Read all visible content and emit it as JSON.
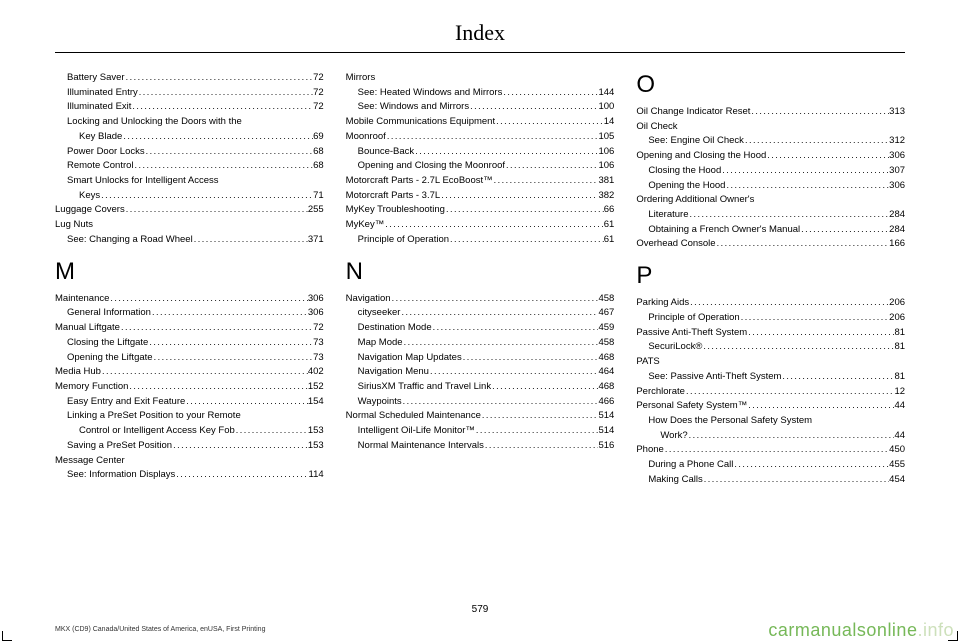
{
  "title": "Index",
  "page_number": "579",
  "footer": "MKX (CD9) Canada/United States of America, enUSA, First Printing",
  "watermark_main": "carmanualsonline",
  "watermark_suffix": ".info",
  "columns": [
    {
      "items": [
        {
          "type": "sub",
          "label": "Battery Saver",
          "page": "72"
        },
        {
          "type": "sub",
          "label": "Illuminated Entry",
          "page": "72"
        },
        {
          "type": "sub",
          "label": "Illuminated Exit",
          "page": "72"
        },
        {
          "type": "subnoline",
          "label": "Locking and Unlocking the Doors with the"
        },
        {
          "type": "subwrap",
          "label": "Key Blade",
          "page": "69"
        },
        {
          "type": "sub",
          "label": "Power Door Locks",
          "page": "68"
        },
        {
          "type": "sub",
          "label": "Remote Control",
          "page": "68"
        },
        {
          "type": "subnoline",
          "label": "Smart Unlocks for Intelligent Access"
        },
        {
          "type": "subwrap",
          "label": "Keys",
          "page": "71"
        },
        {
          "type": "main",
          "label": "Luggage Covers",
          "page": "255"
        },
        {
          "type": "mainnoline",
          "label": "Lug Nuts"
        },
        {
          "type": "sub",
          "label": "See: Changing a Road Wheel",
          "page": "371"
        },
        {
          "type": "letter",
          "label": "M"
        },
        {
          "type": "main",
          "label": "Maintenance",
          "page": "306"
        },
        {
          "type": "sub",
          "label": "General Information",
          "page": "306"
        },
        {
          "type": "main",
          "label": "Manual Liftgate",
          "page": "72"
        },
        {
          "type": "sub",
          "label": "Closing the Liftgate",
          "page": "73"
        },
        {
          "type": "sub",
          "label": "Opening the Liftgate",
          "page": "73"
        },
        {
          "type": "main",
          "label": "Media Hub",
          "page": "402"
        },
        {
          "type": "main",
          "label": "Memory Function",
          "page": "152"
        },
        {
          "type": "sub",
          "label": "Easy Entry and Exit Feature",
          "page": "154"
        },
        {
          "type": "subnoline",
          "label": "Linking a PreSet Position to your Remote"
        },
        {
          "type": "subwrap",
          "label": "Control or Intelligent Access Key Fob",
          "page": "153"
        },
        {
          "type": "sub",
          "label": "Saving a PreSet Position",
          "page": "153"
        },
        {
          "type": "mainnoline",
          "label": "Message Center"
        },
        {
          "type": "sub",
          "label": "See: Information Displays",
          "page": "114"
        }
      ]
    },
    {
      "items": [
        {
          "type": "mainnoline",
          "label": "Mirrors"
        },
        {
          "type": "sub",
          "label": "See: Heated Windows and Mirrors",
          "page": "144"
        },
        {
          "type": "sub",
          "label": "See: Windows and Mirrors",
          "page": "100"
        },
        {
          "type": "main",
          "label": "Mobile Communications Equipment",
          "page": "14"
        },
        {
          "type": "main",
          "label": "Moonroof",
          "page": "105"
        },
        {
          "type": "sub",
          "label": "Bounce-Back",
          "page": "106"
        },
        {
          "type": "sub",
          "label": "Opening and Closing the Moonroof",
          "page": "106"
        },
        {
          "type": "main",
          "label": "Motorcraft Parts - 2.7L EcoBoost™",
          "page": "381"
        },
        {
          "type": "main",
          "label": "Motorcraft Parts - 3.7L",
          "page": "382"
        },
        {
          "type": "main",
          "label": "MyKey Troubleshooting",
          "page": "66"
        },
        {
          "type": "main",
          "label": "MyKey™",
          "page": "61"
        },
        {
          "type": "sub",
          "label": "Principle of Operation",
          "page": "61"
        },
        {
          "type": "letter",
          "label": "N"
        },
        {
          "type": "main",
          "label": "Navigation",
          "page": "458"
        },
        {
          "type": "sub",
          "label": "cityseeker",
          "page": "467"
        },
        {
          "type": "sub",
          "label": "Destination Mode",
          "page": "459"
        },
        {
          "type": "sub",
          "label": "Map Mode",
          "page": "458"
        },
        {
          "type": "sub",
          "label": "Navigation Map Updates",
          "page": "468"
        },
        {
          "type": "sub",
          "label": "Navigation Menu",
          "page": "464"
        },
        {
          "type": "sub",
          "label": "SiriusXM Traffic and Travel Link",
          "page": "468"
        },
        {
          "type": "sub",
          "label": "Waypoints",
          "page": "466"
        },
        {
          "type": "main",
          "label": "Normal Scheduled Maintenance",
          "page": "514"
        },
        {
          "type": "sub",
          "label": "Intelligent Oil-Life Monitor™",
          "page": "514"
        },
        {
          "type": "sub",
          "label": "Normal Maintenance Intervals",
          "page": "516"
        }
      ]
    },
    {
      "items": [
        {
          "type": "letter",
          "label": "O",
          "notop": true
        },
        {
          "type": "main",
          "label": "Oil Change Indicator Reset",
          "page": "313"
        },
        {
          "type": "mainnoline",
          "label": "Oil Check"
        },
        {
          "type": "sub",
          "label": "See: Engine Oil Check",
          "page": "312"
        },
        {
          "type": "main",
          "label": "Opening and Closing the Hood",
          "page": "306"
        },
        {
          "type": "sub",
          "label": "Closing the Hood",
          "page": "307"
        },
        {
          "type": "sub",
          "label": "Opening the Hood",
          "page": "306"
        },
        {
          "type": "mainnoline",
          "label": "Ordering Additional Owner's"
        },
        {
          "type": "mainwrap",
          "label": "Literature",
          "page": "284"
        },
        {
          "type": "sub",
          "label": "Obtaining a French Owner's Manual",
          "page": "284"
        },
        {
          "type": "main",
          "label": "Overhead Console",
          "page": "166"
        },
        {
          "type": "letter",
          "label": "P"
        },
        {
          "type": "main",
          "label": "Parking Aids",
          "page": "206"
        },
        {
          "type": "sub",
          "label": "Principle of Operation",
          "page": "206"
        },
        {
          "type": "main",
          "label": "Passive Anti-Theft System",
          "page": "81"
        },
        {
          "type": "sub",
          "label": "SecuriLock®",
          "page": "81"
        },
        {
          "type": "mainnoline",
          "label": "PATS"
        },
        {
          "type": "sub",
          "label": "See: Passive Anti-Theft System",
          "page": "81"
        },
        {
          "type": "main",
          "label": "Perchlorate",
          "page": "12"
        },
        {
          "type": "main",
          "label": "Personal Safety System™",
          "page": "44"
        },
        {
          "type": "subnoline",
          "label": "How Does the Personal Safety System"
        },
        {
          "type": "subwrap",
          "label": "Work?",
          "page": "44"
        },
        {
          "type": "main",
          "label": "Phone",
          "page": "450"
        },
        {
          "type": "sub",
          "label": "During a Phone Call",
          "page": "455"
        },
        {
          "type": "sub",
          "label": "Making Calls",
          "page": "454"
        }
      ]
    }
  ]
}
